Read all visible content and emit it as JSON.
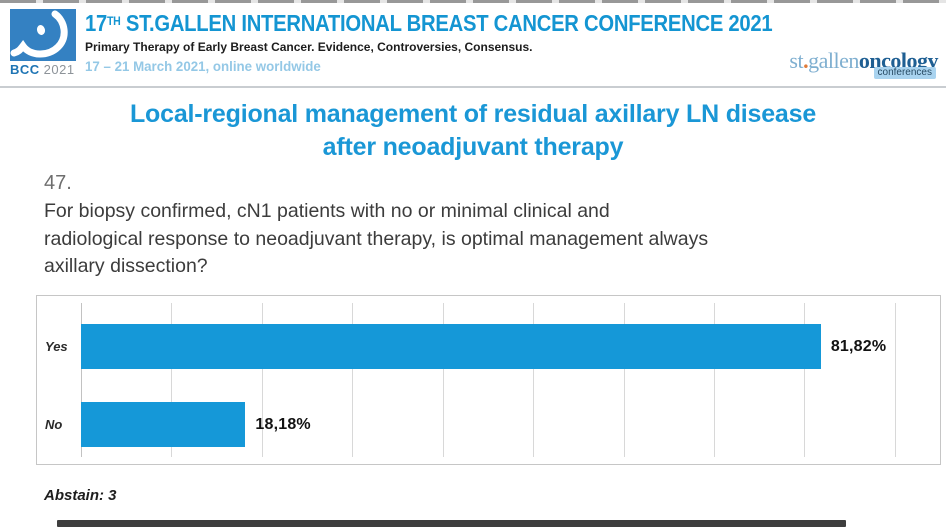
{
  "header": {
    "logo": {
      "caption_bcc": "BCC",
      "caption_year": "2021"
    },
    "title_num": "17",
    "title_sup": "TH",
    "title_rest": " ST.GALLEN INTERNATIONAL BREAST CANCER CONFERENCE 2021",
    "subtitle": "Primary Therapy of Early Breast Cancer. Evidence, Controversies, Consensus.",
    "dates": "17 – 21 March 2021, online worldwide",
    "brand": {
      "st": "st",
      "dot": ".",
      "gallen": "gallen",
      "oncology": "oncology",
      "conferences": "conferences"
    }
  },
  "slide": {
    "title_line1": "Local-regional management of residual axillary LN disease",
    "title_line2": "after neoadjuvant therapy",
    "question_number": "47.",
    "question_lines": [
      "For biopsy confirmed, cN1 patients with no or minimal clinical and",
      "radiological response to neoadjuvant therapy, is optimal management always",
      "axillary dissection?"
    ],
    "abstain": "Abstain: 3"
  },
  "chart_data": {
    "type": "bar",
    "orientation": "horizontal",
    "title": "",
    "xlabel": "",
    "ylabel": "",
    "categories": [
      "Yes",
      "No"
    ],
    "values": [
      81.82,
      18.18
    ],
    "value_labels": [
      "81,82%",
      "18,18%"
    ],
    "xlim": [
      0,
      95
    ],
    "gridline_interval": 10,
    "grid": true,
    "legend": false,
    "bar_color": "#1598d8"
  },
  "colors": {
    "header_blue": "#1495d2",
    "title_blue": "#1a97d6",
    "dates_blue": "#94c8e6",
    "bar_blue": "#1598d8",
    "grid_gray": "#d8d8d8"
  }
}
